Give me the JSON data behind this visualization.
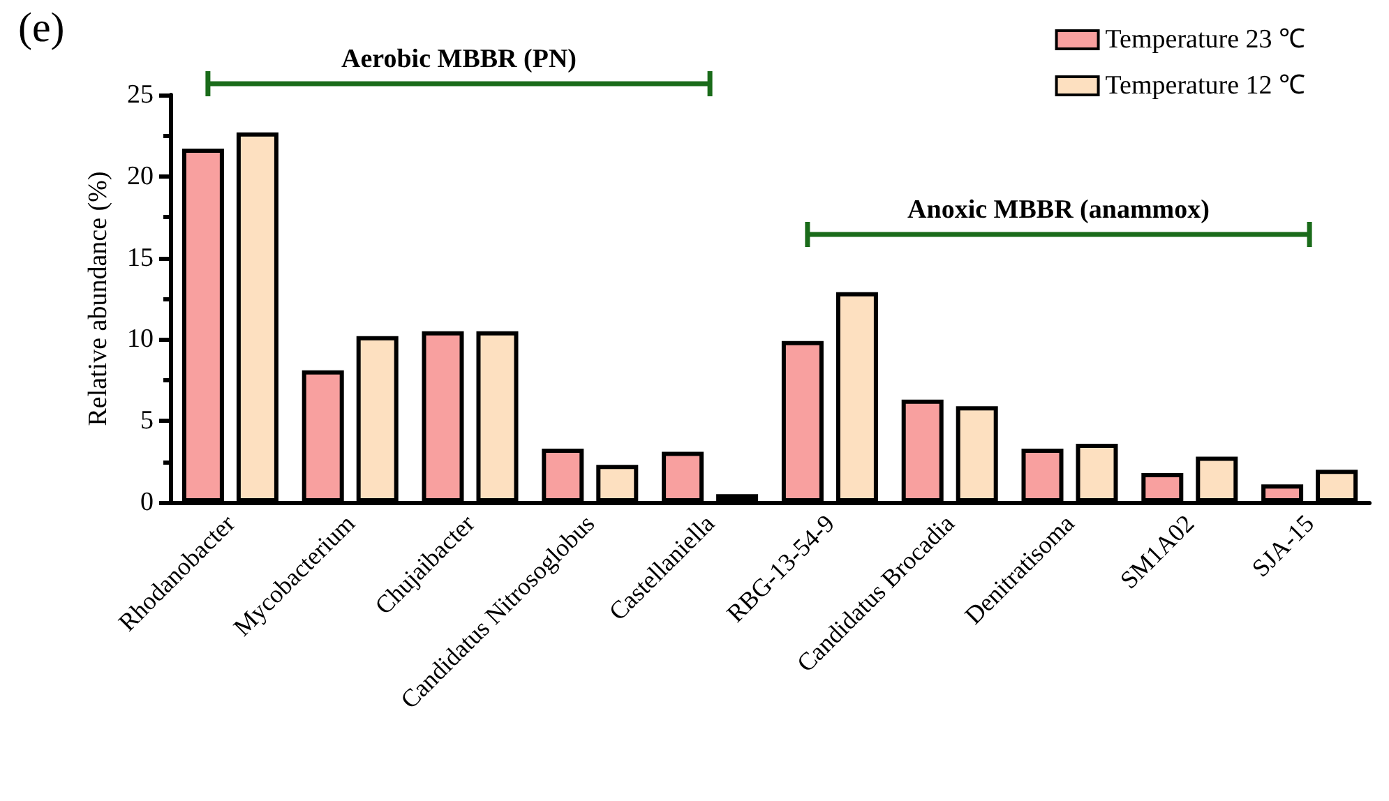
{
  "chart_data": {
    "type": "bar",
    "title": "(e)",
    "ylabel": "Relative abundance (%)",
    "categories": [
      "Rhodanobacter",
      "Mycobacterium",
      "Chujaibacter",
      "Candidatus Nitrosoglobus",
      "Castellaniella",
      "RBG-13-54-9",
      "Candidatus Brocadia",
      "Denitratisoma",
      "SM1A02",
      "SJA-15"
    ],
    "series": [
      {
        "name": "Temperature 23 ℃",
        "color": "#f8a09f",
        "values": [
          21.7,
          8.1,
          10.5,
          3.3,
          3.1,
          9.9,
          6.3,
          3.3,
          1.8,
          1.1
        ]
      },
      {
        "name": "Temperature 12 ℃",
        "color": "#fde0c0",
        "values": [
          22.7,
          10.2,
          10.5,
          2.3,
          0.5,
          12.9,
          5.9,
          3.6,
          2.8,
          2.0
        ]
      }
    ],
    "ylim": [
      0,
      25
    ],
    "yticks": [
      0,
      5,
      10,
      15,
      20,
      25
    ],
    "grid": false,
    "legend": "top right",
    "annotations": [
      "Aerobic MBBR (PN)",
      "Anoxic MBBR (anammox)"
    ]
  }
}
